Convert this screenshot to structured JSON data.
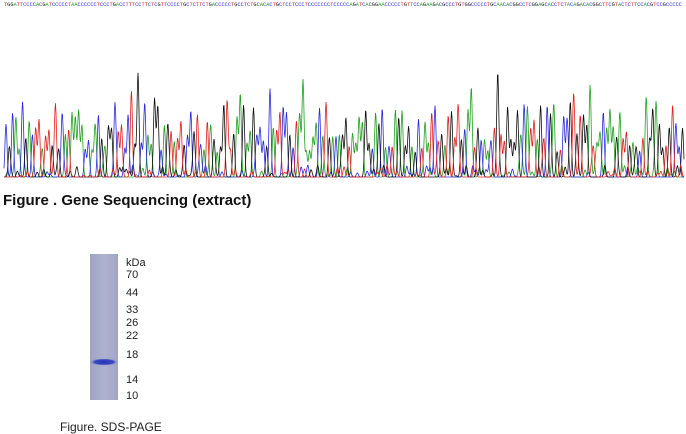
{
  "sequence": "TGGATTCCCCACGATCCCCCTAACCCCCCTCCCTGACCTTTCCTTCTCGTTCCCCTGCTCTTCTGACCCCCTGCCTCTGCACACTGCTCCTCCCTCCCCCCCTCCCCCAGATCACGGAACCCCCTGTTCCAGAAGACGCCCTGTGGCCCCCTGCAACACGGCCTCGGAGCACCTCTACAGACACGGCTTCGTACTCTTCCACGTCCGCCCCC",
  "figure1": {
    "caption": "Figure . Gene Sequencing (extract)"
  },
  "figure2": {
    "caption": "Figure. SDS-PAGE",
    "unit": "kDa",
    "markers": [
      70,
      44,
      33,
      26,
      22,
      18,
      14,
      10
    ]
  }
}
